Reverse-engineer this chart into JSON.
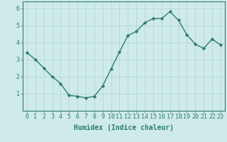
{
  "x": [
    0,
    1,
    2,
    3,
    4,
    5,
    6,
    7,
    8,
    9,
    10,
    11,
    12,
    13,
    14,
    15,
    16,
    17,
    18,
    19,
    20,
    21,
    22,
    23
  ],
  "y": [
    3.4,
    3.0,
    2.5,
    2.0,
    1.6,
    0.9,
    0.85,
    0.75,
    0.85,
    1.45,
    2.45,
    3.45,
    4.4,
    4.65,
    5.15,
    5.4,
    5.4,
    5.8,
    5.3,
    4.45,
    3.9,
    3.65,
    4.2,
    3.85
  ],
  "line_color": "#2e7d6e",
  "marker": "D",
  "markersize": 2.2,
  "linewidth": 1.0,
  "bg_color": "#ceeaea",
  "grid_color": "#b0d4d4",
  "xlabel": "Humidex (Indice chaleur)",
  "xlabel_fontsize": 7,
  "tick_fontsize": 6,
  "ylim": [
    0,
    6.4
  ],
  "xlim": [
    -0.5,
    23.5
  ],
  "yticks": [
    1,
    2,
    3,
    4,
    5,
    6
  ],
  "xticks": [
    0,
    1,
    2,
    3,
    4,
    5,
    6,
    7,
    8,
    9,
    10,
    11,
    12,
    13,
    14,
    15,
    16,
    17,
    18,
    19,
    20,
    21,
    22,
    23
  ]
}
